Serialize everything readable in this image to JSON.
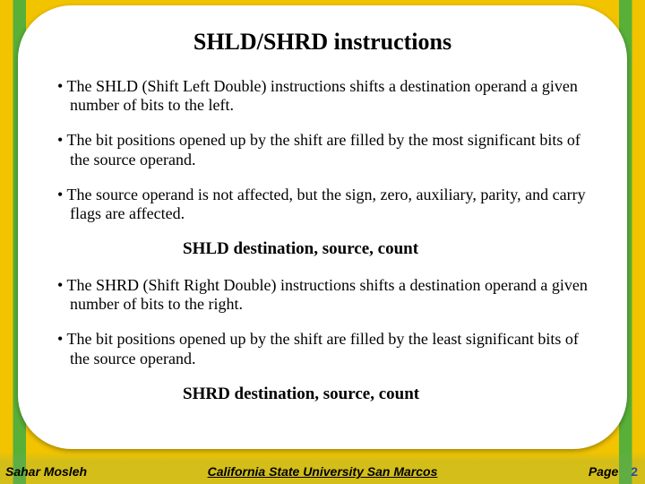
{
  "slide": {
    "title": "SHLD/SHRD instructions",
    "bullets": [
      "The SHLD (Shift Left Double) instructions shifts a destination operand a given number of bits to the left.",
      "The bit positions opened up by the shift are filled by the most significant bits of the source operand.",
      "The source operand is not affected, but the sign, zero, auxiliary, parity, and carry flags are affected."
    ],
    "syntax1": "SHLD destination, source, count",
    "bullets2": [
      "The SHRD (Shift Right Double) instructions shifts a destination operand a given number of bits to the right.",
      "The bit positions opened up by the shift are filled by the least significant bits of the source operand."
    ],
    "syntax2": "SHRD destination, source, count"
  },
  "footer": {
    "author": "Sahar Mosleh",
    "institution": "California State University San Marcos",
    "page_label": "Page",
    "page_number": "2"
  },
  "style": {
    "background_stripe_colors": [
      "#f2c400",
      "#58b038"
    ],
    "card_bg": "#ffffff",
    "title_fontsize_pt": 20,
    "body_fontsize_pt": 14,
    "font_family": "Times New Roman"
  }
}
